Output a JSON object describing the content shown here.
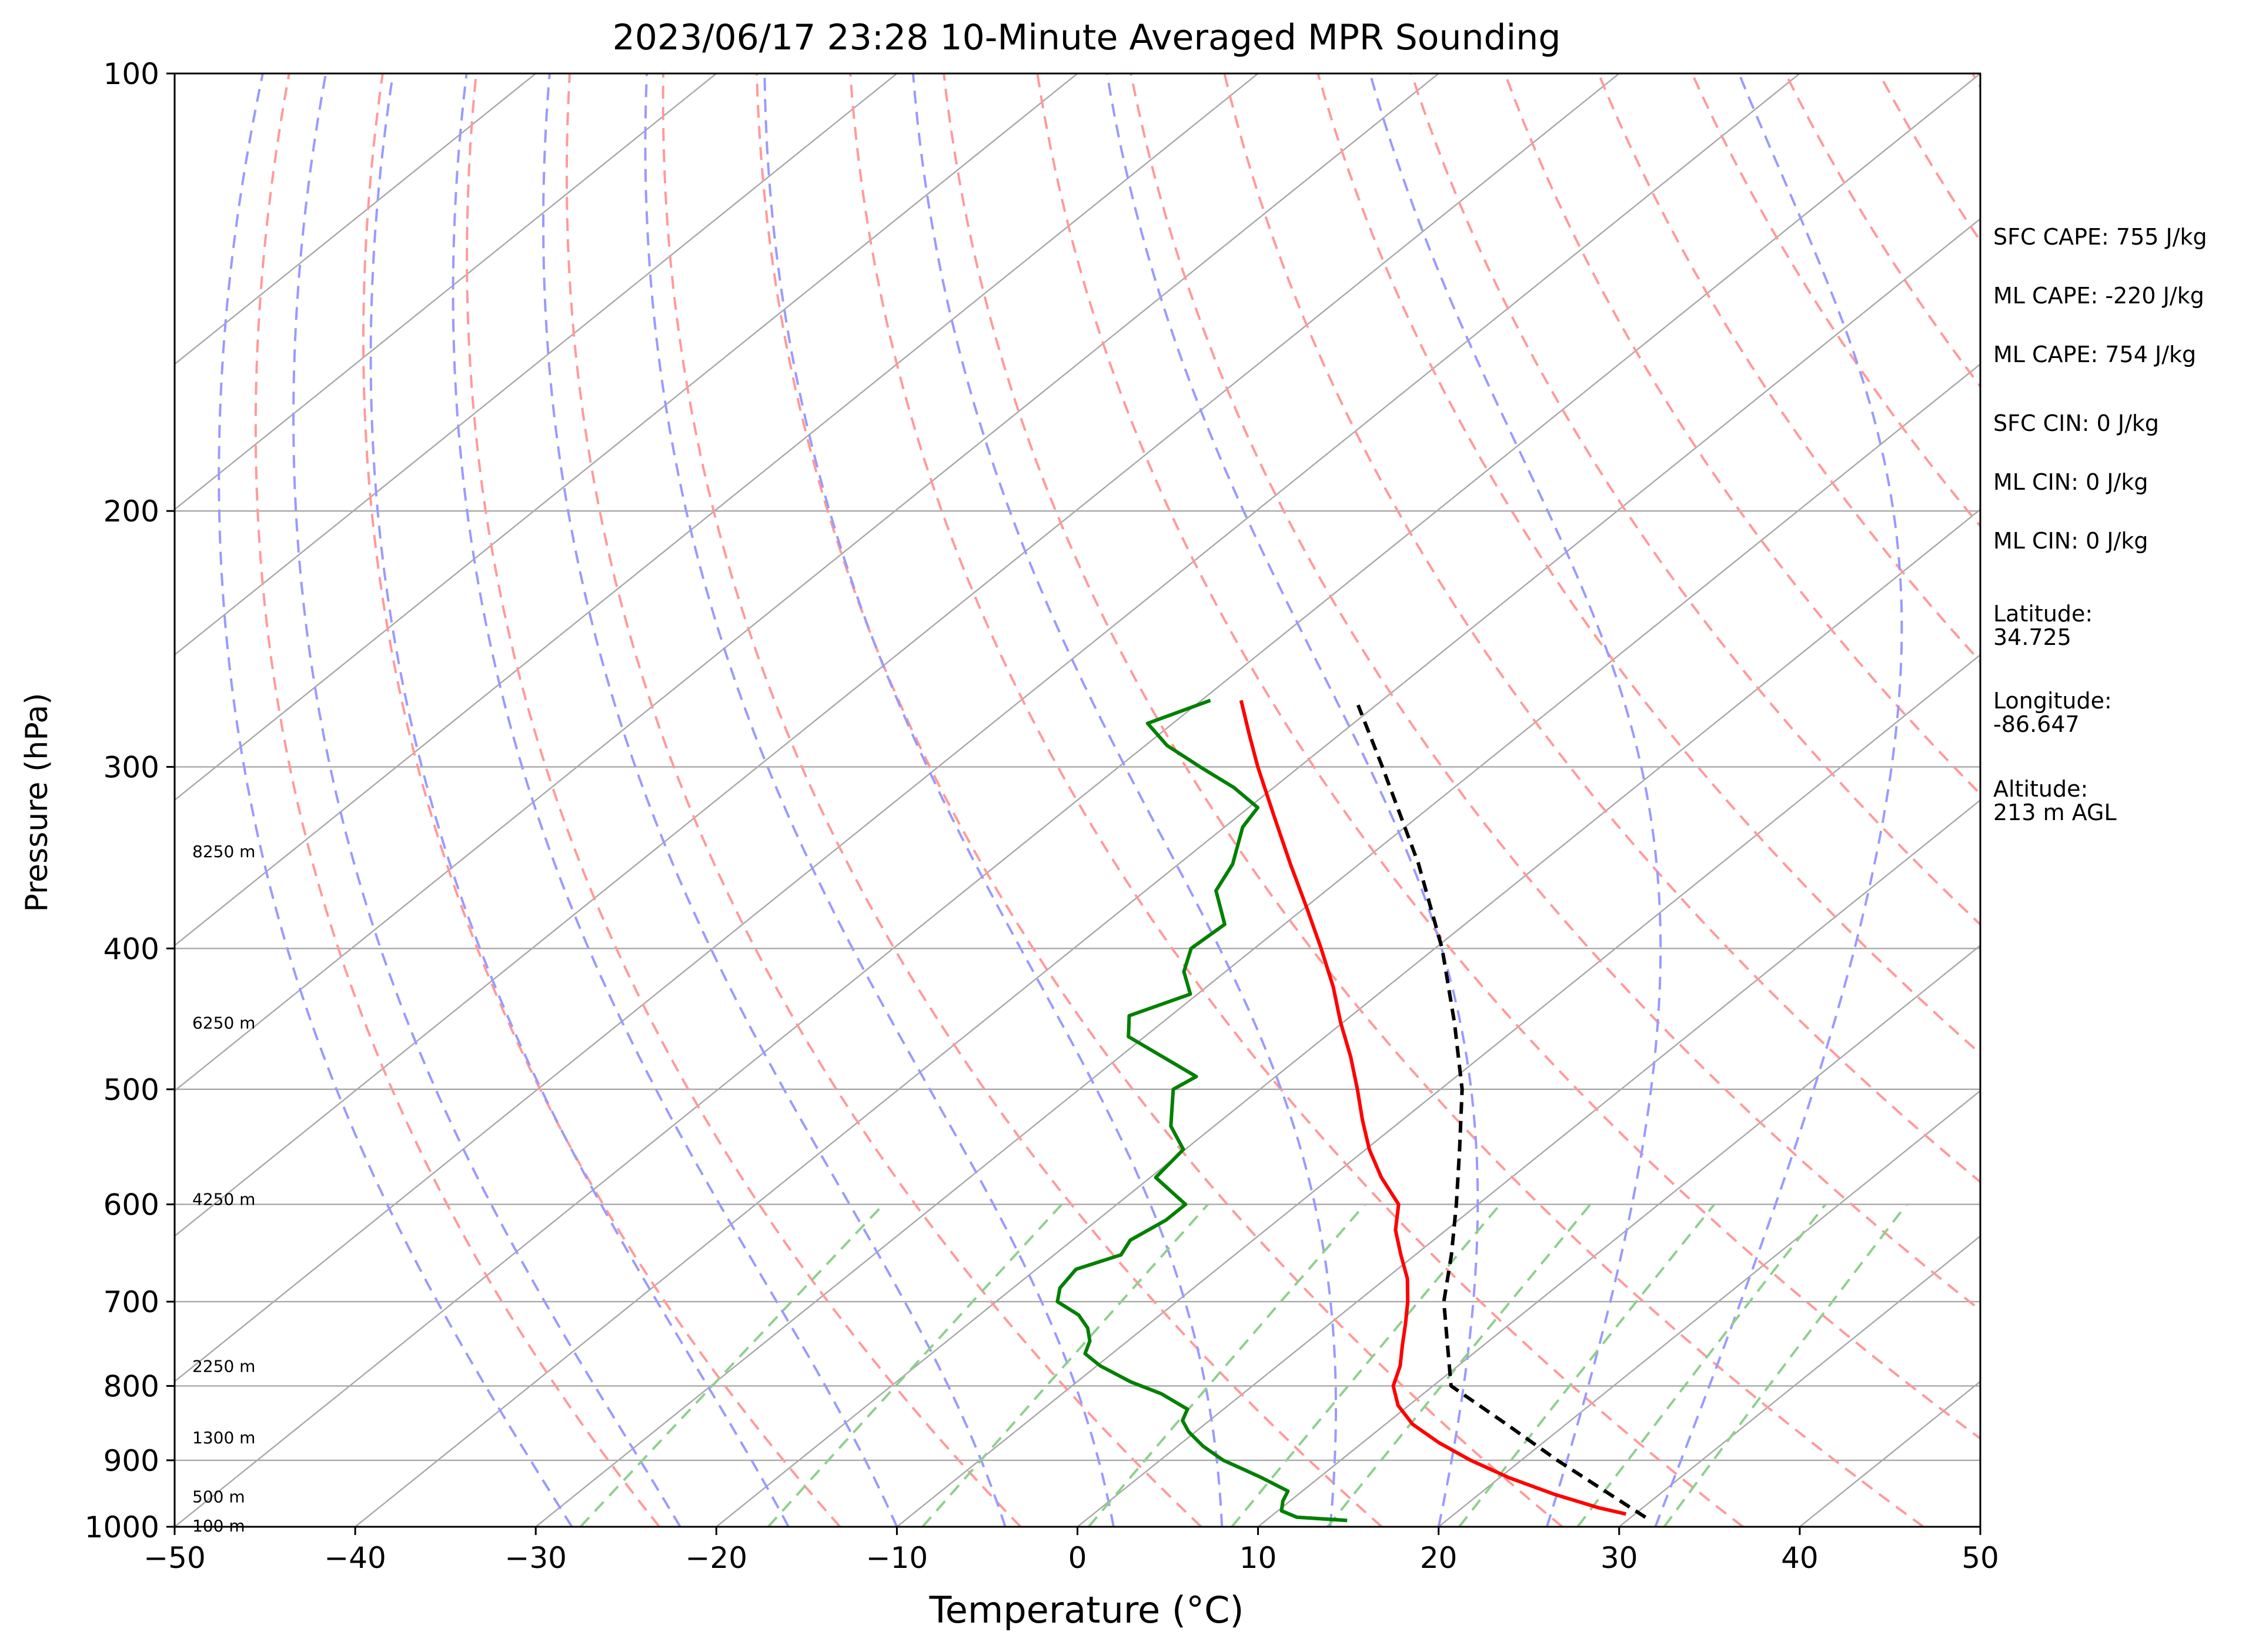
{
  "chart_data": {
    "type": "line",
    "title": "2023/06/17 23:28 10-Minute Averaged MPR Sounding",
    "xlabel": "Temperature (°C)",
    "ylabel": "Pressure (hPa)",
    "xlim": [
      -50,
      50
    ],
    "ylim": [
      1000,
      100
    ],
    "y_scale": "log",
    "x_ticks": [
      -50,
      -40,
      -30,
      -20,
      -10,
      0,
      10,
      20,
      30,
      40,
      50
    ],
    "x_tick_labels": [
      "−50",
      "−40",
      "−30",
      "−20",
      "−10",
      "0",
      "10",
      "20",
      "30",
      "40",
      "50"
    ],
    "y_ticks": [
      100,
      200,
      300,
      400,
      500,
      600,
      700,
      800,
      900,
      1000
    ],
    "y_tick_labels": [
      "100",
      "200",
      "300",
      "400",
      "500",
      "600",
      "700",
      "800",
      "900",
      "1000"
    ],
    "grid": true,
    "skew": "skew-T log-P",
    "isotherm_spacing": 10,
    "dry_adiabats_K": [
      250,
      260,
      270,
      280,
      290,
      300,
      310,
      320,
      330,
      340,
      350,
      360,
      370,
      380,
      390,
      400,
      410,
      420,
      430,
      440
    ],
    "moist_adiabats_C": [
      -28,
      -22,
      -16,
      -10,
      -4,
      2,
      8,
      14,
      20,
      26,
      32
    ],
    "mixing_ratios_gkg": [
      0.4,
      1,
      2,
      4,
      7,
      10,
      16,
      24,
      32
    ],
    "height_labels": [
      {
        "text": "100 m",
        "p": 998
      },
      {
        "text": "500 m",
        "p": 953
      },
      {
        "text": "1300 m",
        "p": 868
      },
      {
        "text": "2250 m",
        "p": 775
      },
      {
        "text": "4250 m",
        "p": 595
      },
      {
        "text": "6250 m",
        "p": 450
      },
      {
        "text": "8250 m",
        "p": 343
      }
    ],
    "series": [
      {
        "role": "temperature",
        "color": "#ff0000",
        "dashed": false,
        "p": [
          980,
          970,
          950,
          925,
          900,
          875,
          850,
          825,
          800,
          775,
          750,
          725,
          700,
          675,
          650,
          625,
          600,
          575,
          550,
          525,
          500,
          475,
          450,
          425,
          400,
          375,
          350,
          325,
          300,
          285,
          270
        ],
        "t": [
          29.5,
          27.5,
          24.2,
          20.5,
          17.2,
          14.2,
          11.5,
          9.4,
          7.8,
          6.8,
          5.5,
          4.2,
          2.8,
          1.2,
          -0.8,
          -2.8,
          -4.4,
          -7.2,
          -9.8,
          -12.2,
          -14.6,
          -17.2,
          -20.1,
          -23.0,
          -26.3,
          -29.9,
          -33.8,
          -37.9,
          -42.3,
          -45.0,
          -47.8
        ]
      },
      {
        "role": "dewpoint",
        "color": "#008000",
        "dashed": false,
        "p": [
          990,
          985,
          975,
          960,
          945,
          935,
          925,
          915,
          900,
          880,
          860,
          845,
          830,
          810,
          795,
          775,
          760,
          745,
          730,
          715,
          700,
          685,
          665,
          650,
          635,
          615,
          600,
          575,
          550,
          530,
          500,
          490,
          460,
          445,
          430,
          415,
          400,
          385,
          365,
          350,
          330,
          320,
          310,
          300,
          290,
          280,
          270
        ],
        "t": [
          14.5,
          11.5,
          10.2,
          9.6,
          9.2,
          8.0,
          6.8,
          5.5,
          3.5,
          1.4,
          -0.4,
          -1.5,
          -2.0,
          -4.5,
          -7.0,
          -9.8,
          -11.5,
          -12.1,
          -13.1,
          -14.5,
          -16.6,
          -17.4,
          -17.8,
          -16.3,
          -16.8,
          -16.2,
          -16.2,
          -19.7,
          -20.1,
          -22.4,
          -24.8,
          -24.4,
          -30.9,
          -32.3,
          -30.4,
          -32.3,
          -33.5,
          -33.3,
          -36.1,
          -37.0,
          -39.0,
          -39.5,
          -42.2,
          -45.5,
          -48.8,
          -51.4,
          -49.5
        ]
      },
      {
        "role": "parcel",
        "color": "#000000",
        "dashed": true,
        "p": [
          985,
          900,
          850,
          800,
          750,
          700,
          650,
          600,
          550,
          500,
          450,
          400,
          350,
          300,
          272
        ],
        "t": [
          30.8,
          22.0,
          16.7,
          11.0,
          8.0,
          4.8,
          2.0,
          -1.2,
          -4.8,
          -8.8,
          -13.8,
          -19.6,
          -26.7,
          -35.4,
          -41.0
        ]
      }
    ]
  },
  "side_stats": [
    "SFC CAPE: 755 J/kg",
    "ML CAPE: -220 J/kg",
    "ML CAPE: 754 J/kg",
    "SFC CIN: 0 J/kg",
    "ML CIN: 0 J/kg",
    "ML CIN: 0 J/kg",
    "Latitude:\n34.725",
    "Longitude:\n-86.647",
    "Altitude:\n213 m AGL"
  ],
  "colors": {
    "isotherm": "#a8a8a8",
    "isobar": "#a8a8a8",
    "dry_adiabat": "#ff9a9a",
    "moist_adiabat": "#9a9aff",
    "mixing_ratio": "#8fcf8f"
  }
}
